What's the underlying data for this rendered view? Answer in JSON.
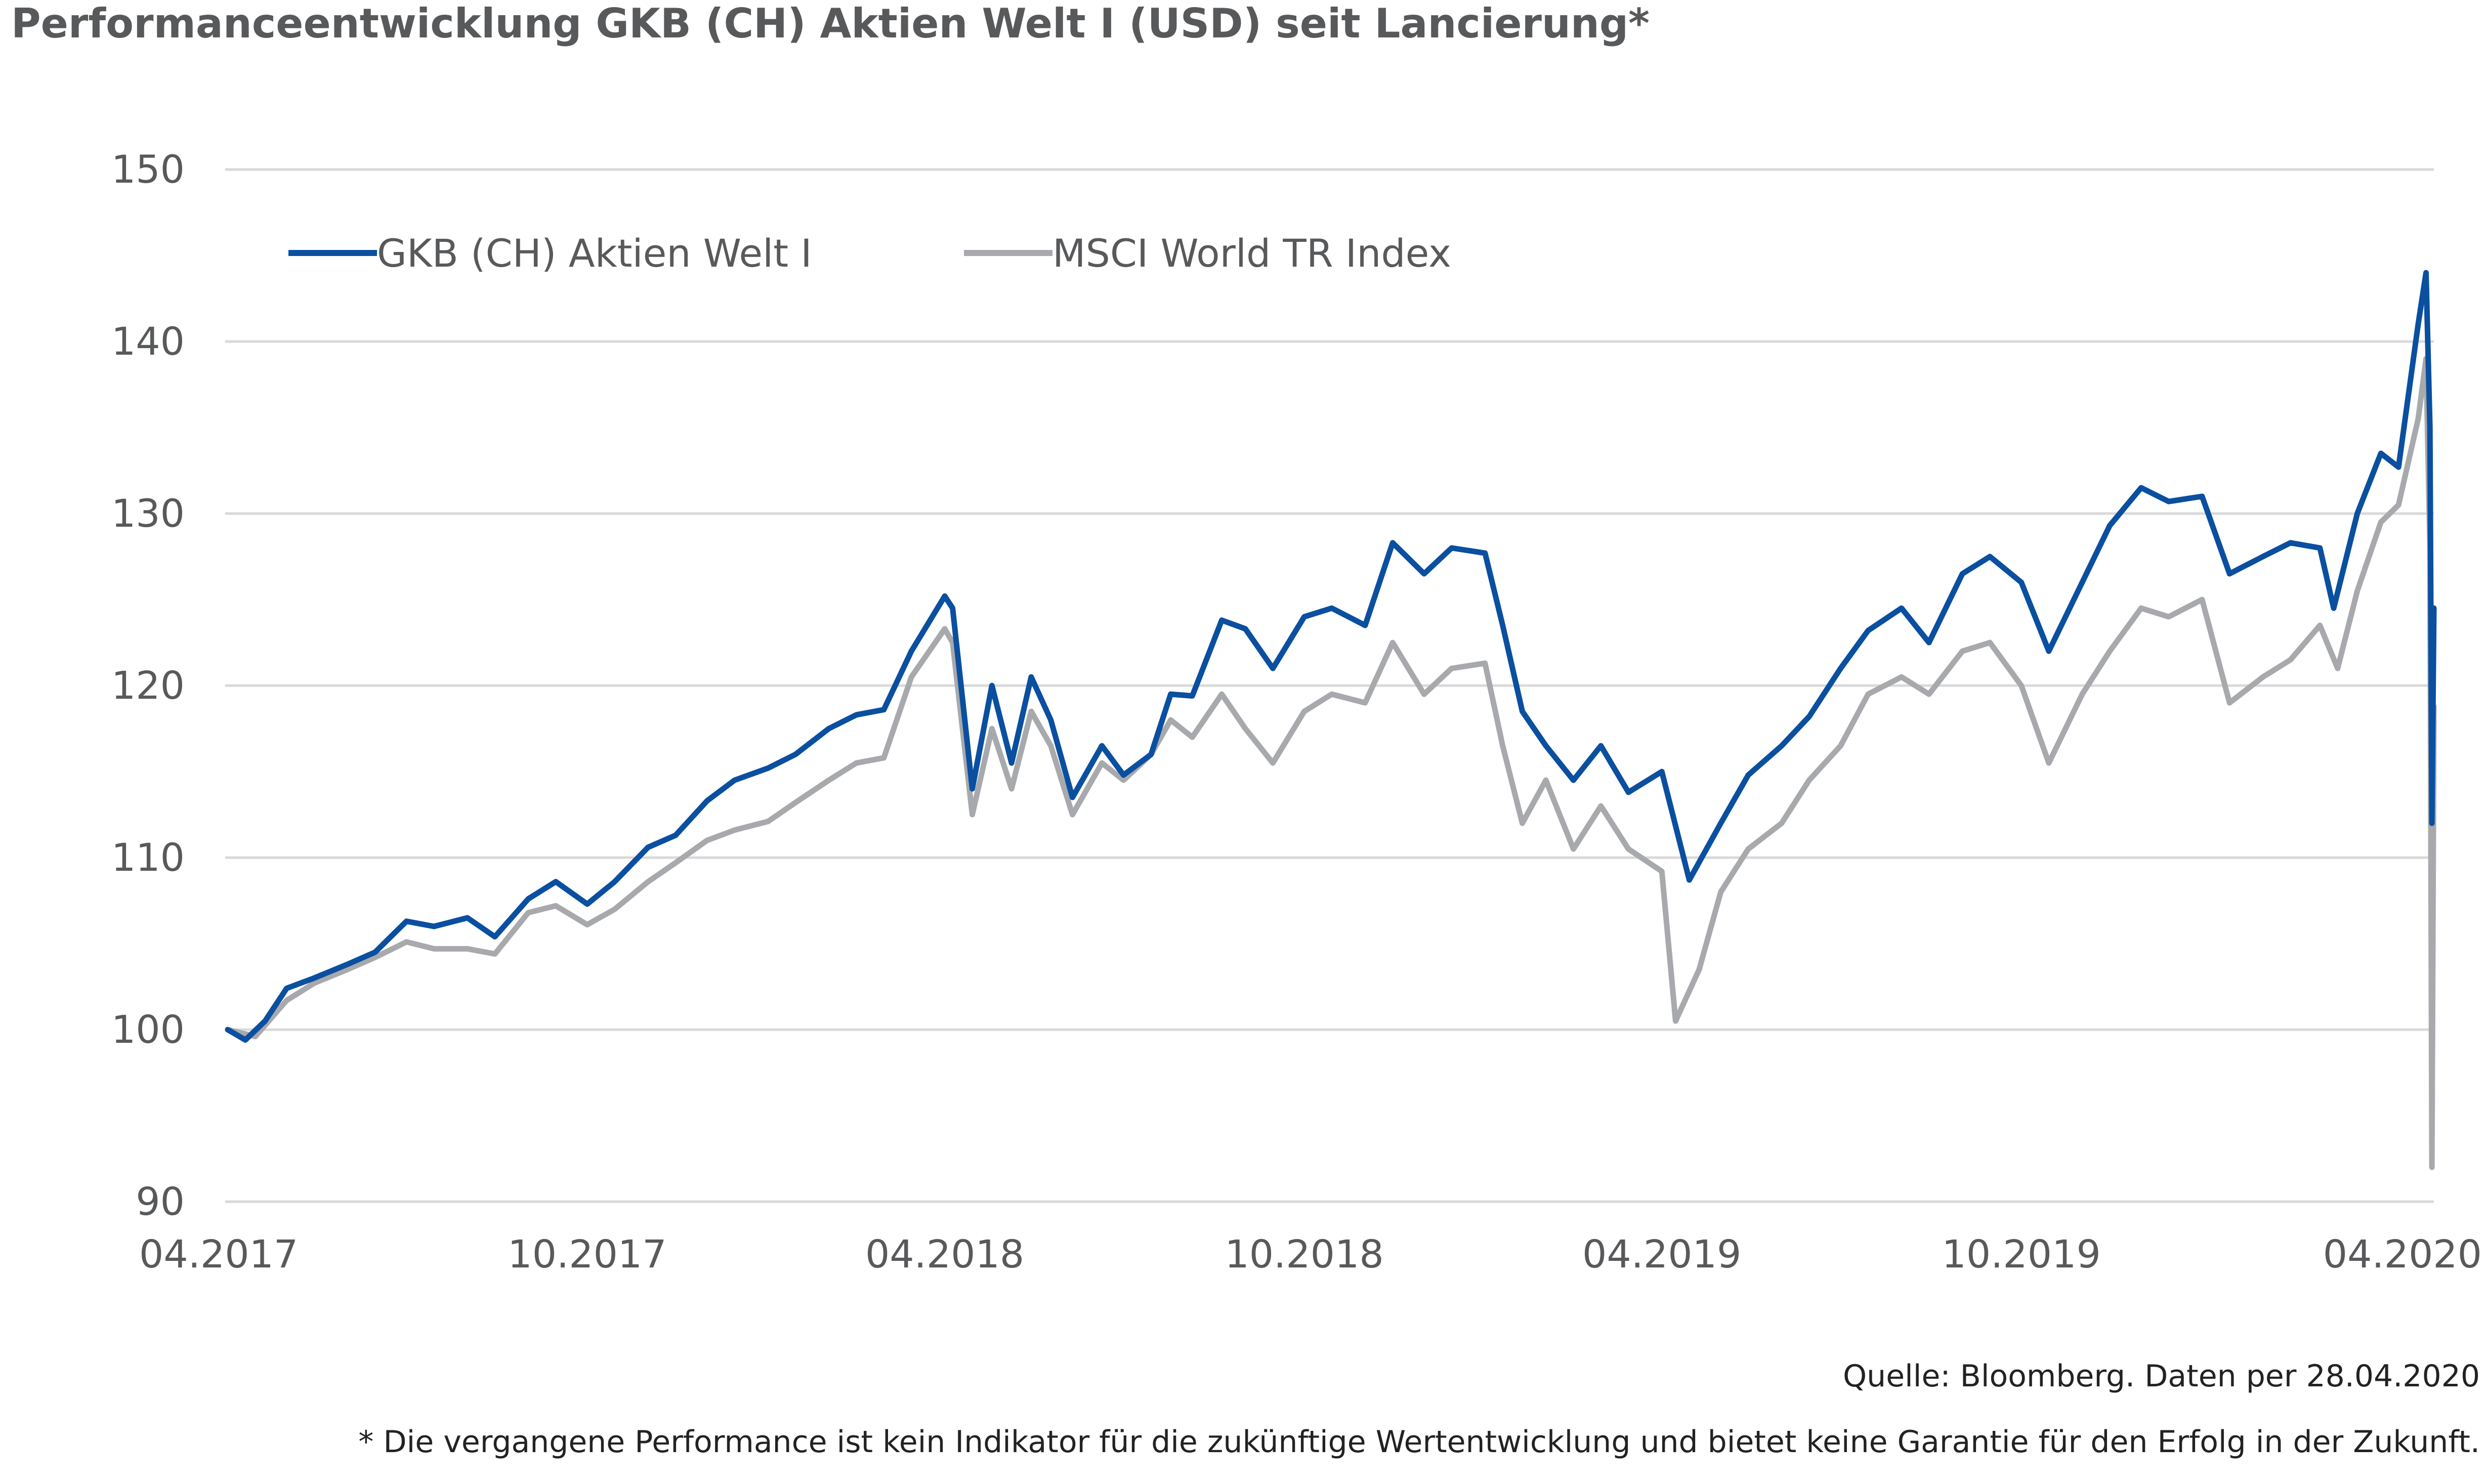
{
  "chart_data": {
    "type": "line",
    "title": "Performanceentwicklung GKB (CH) Aktien Welt I (USD) seit Lancierung*",
    "xlabel": "",
    "ylabel": "",
    "ylim": [
      90,
      150
    ],
    "yticks": [
      "90",
      "100",
      "110",
      "120",
      "130",
      "140",
      "150"
    ],
    "xlim": [
      "2017-04-01",
      "2020-04-28"
    ],
    "xticks": [
      {
        "date": "2017-04-01",
        "label": "04.2017"
      },
      {
        "date": "2017-10-01",
        "label": "10.2017"
      },
      {
        "date": "2018-04-01",
        "label": "04.2018"
      },
      {
        "date": "2018-10-01",
        "label": "10.2018"
      },
      {
        "date": "2019-04-01",
        "label": "04.2019"
      },
      {
        "date": "2019-10-01",
        "label": "10.2019"
      },
      {
        "date": "2020-04-01",
        "label": "04.2020"
      }
    ],
    "grid": true,
    "legend_position": "top-left",
    "series": [
      {
        "name": "GKB (CH) Aktien Welt I",
        "color": "#0a4fa0",
        "points": [
          [
            "2017-04-01",
            100
          ],
          [
            "2017-04-10",
            99.4
          ],
          [
            "2017-04-20",
            100.5
          ],
          [
            "2017-05-01",
            102.4
          ],
          [
            "2017-05-15",
            103
          ],
          [
            "2017-06-01",
            103.8
          ],
          [
            "2017-06-15",
            104.5
          ],
          [
            "2017-07-01",
            106.3
          ],
          [
            "2017-07-15",
            106
          ],
          [
            "2017-08-01",
            106.5
          ],
          [
            "2017-08-15",
            105.4
          ],
          [
            "2017-09-01",
            107.6
          ],
          [
            "2017-09-15",
            108.6
          ],
          [
            "2017-10-01",
            107.3
          ],
          [
            "2017-10-15",
            108.6
          ],
          [
            "2017-11-01",
            110.6
          ],
          [
            "2017-11-15",
            111.3
          ],
          [
            "2017-12-01",
            113.3
          ],
          [
            "2017-12-15",
            114.5
          ],
          [
            "2018-01-01",
            115.2
          ],
          [
            "2018-01-15",
            116
          ],
          [
            "2018-02-01",
            117.5
          ],
          [
            "2018-02-15",
            118.3
          ],
          [
            "2018-03-01",
            118.6
          ],
          [
            "2018-03-15",
            122
          ],
          [
            "2018-04-01",
            125.2
          ],
          [
            "2018-04-05",
            124.5
          ],
          [
            "2018-04-15",
            114
          ],
          [
            "2018-04-25",
            120
          ],
          [
            "2018-05-05",
            115.5
          ],
          [
            "2018-05-15",
            120.5
          ],
          [
            "2018-05-25",
            118
          ],
          [
            "2018-06-05",
            113.5
          ],
          [
            "2018-06-20",
            116.5
          ],
          [
            "2018-07-01",
            114.8
          ],
          [
            "2018-07-15",
            116
          ],
          [
            "2018-07-25",
            119.5
          ],
          [
            "2018-08-05",
            119.4
          ],
          [
            "2018-08-20",
            123.8
          ],
          [
            "2018-09-01",
            123.3
          ],
          [
            "2018-09-15",
            121
          ],
          [
            "2018-10-01",
            124
          ],
          [
            "2018-10-15",
            124.5
          ],
          [
            "2018-11-01",
            123.5
          ],
          [
            "2018-11-15",
            128.3
          ],
          [
            "2018-12-01",
            126.5
          ],
          [
            "2018-12-15",
            128
          ],
          [
            "2019-01-01",
            127.7
          ],
          [
            "2019-01-10",
            123.5
          ],
          [
            "2019-01-20",
            118.5
          ],
          [
            "2019-02-01",
            116.5
          ],
          [
            "2019-02-15",
            114.5
          ],
          [
            "2019-03-01",
            116.5
          ],
          [
            "2019-03-15",
            113.8
          ],
          [
            "2019-04-01",
            115
          ],
          [
            "2019-04-15",
            108.7
          ],
          [
            "2019-05-01",
            112
          ],
          [
            "2019-05-15",
            114.8
          ],
          [
            "2019-06-01",
            116.5
          ],
          [
            "2019-06-15",
            118.2
          ],
          [
            "2019-07-01",
            121
          ],
          [
            "2019-07-15",
            123.2
          ],
          [
            "2019-08-01",
            124.5
          ],
          [
            "2019-08-15",
            122.5
          ],
          [
            "2019-09-01",
            126.5
          ],
          [
            "2019-09-15",
            127.5
          ],
          [
            "2019-10-01",
            126
          ],
          [
            "2019-10-15",
            122
          ],
          [
            "2019-11-01",
            126
          ],
          [
            "2019-11-15",
            129.3
          ],
          [
            "2019-12-01",
            131.5
          ],
          [
            "2019-12-15",
            130.7
          ],
          [
            "2020-01-01",
            131
          ],
          [
            "2020-01-15",
            126.5
          ],
          [
            "2020-02-01",
            127.5
          ],
          [
            "2020-02-15",
            128.3
          ],
          [
            "2020-03-01",
            128
          ],
          [
            "2020-03-08",
            124.5
          ],
          [
            "2020-03-20",
            130
          ],
          [
            "2020-04-01",
            133.5
          ],
          [
            "2020-04-10",
            132.7
          ],
          [
            "2020-04-20",
            141
          ],
          [
            "2020-04-24",
            144
          ],
          [
            "2020-04-26",
            135
          ],
          [
            "2020-04-27",
            112
          ],
          [
            "2020-04-28",
            124.5
          ]
        ]
      },
      {
        "name": "MSCI World TR Index",
        "color": "#a7a9ac",
        "points": [
          [
            "2017-04-01",
            100
          ],
          [
            "2017-04-15",
            99.6
          ],
          [
            "2017-05-01",
            101.7
          ],
          [
            "2017-05-15",
            102.7
          ],
          [
            "2017-06-01",
            103.5
          ],
          [
            "2017-06-15",
            104.2
          ],
          [
            "2017-07-01",
            105.1
          ],
          [
            "2017-07-15",
            104.7
          ],
          [
            "2017-08-01",
            104.7
          ],
          [
            "2017-08-15",
            104.4
          ],
          [
            "2017-09-01",
            106.8
          ],
          [
            "2017-09-15",
            107.2
          ],
          [
            "2017-10-01",
            106.1
          ],
          [
            "2017-10-15",
            107
          ],
          [
            "2017-11-01",
            108.6
          ],
          [
            "2017-11-15",
            109.7
          ],
          [
            "2017-12-01",
            111
          ],
          [
            "2017-12-15",
            111.6
          ],
          [
            "2018-01-01",
            112.1
          ],
          [
            "2018-01-15",
            113.2
          ],
          [
            "2018-02-01",
            114.5
          ],
          [
            "2018-02-15",
            115.5
          ],
          [
            "2018-03-01",
            115.8
          ],
          [
            "2018-03-15",
            120.5
          ],
          [
            "2018-04-01",
            123.3
          ],
          [
            "2018-04-05",
            122.5
          ],
          [
            "2018-04-15",
            112.5
          ],
          [
            "2018-04-25",
            117.5
          ],
          [
            "2018-05-05",
            114
          ],
          [
            "2018-05-15",
            118.5
          ],
          [
            "2018-05-25",
            116.5
          ],
          [
            "2018-06-05",
            112.5
          ],
          [
            "2018-06-20",
            115.5
          ],
          [
            "2018-07-01",
            114.5
          ],
          [
            "2018-07-15",
            116
          ],
          [
            "2018-07-25",
            118
          ],
          [
            "2018-08-05",
            117
          ],
          [
            "2018-08-20",
            119.5
          ],
          [
            "2018-09-01",
            117.5
          ],
          [
            "2018-09-15",
            115.5
          ],
          [
            "2018-10-01",
            118.5
          ],
          [
            "2018-10-15",
            119.5
          ],
          [
            "2018-11-01",
            119
          ],
          [
            "2018-11-15",
            122.5
          ],
          [
            "2018-12-01",
            119.5
          ],
          [
            "2018-12-15",
            121
          ],
          [
            "2019-01-01",
            121.3
          ],
          [
            "2019-01-10",
            116.5
          ],
          [
            "2019-01-20",
            112
          ],
          [
            "2019-02-01",
            114.5
          ],
          [
            "2019-02-15",
            110.5
          ],
          [
            "2019-03-01",
            113
          ],
          [
            "2019-03-15",
            110.5
          ],
          [
            "2019-04-01",
            109.2
          ],
          [
            "2019-04-08",
            100.5
          ],
          [
            "2019-04-20",
            103.5
          ],
          [
            "2019-05-01",
            108
          ],
          [
            "2019-05-15",
            110.5
          ],
          [
            "2019-06-01",
            112
          ],
          [
            "2019-06-15",
            114.5
          ],
          [
            "2019-07-01",
            116.5
          ],
          [
            "2019-07-15",
            119.5
          ],
          [
            "2019-08-01",
            120.5
          ],
          [
            "2019-08-15",
            119.5
          ],
          [
            "2019-09-01",
            122
          ],
          [
            "2019-09-15",
            122.5
          ],
          [
            "2019-10-01",
            120
          ],
          [
            "2019-10-15",
            115.5
          ],
          [
            "2019-11-01",
            119.5
          ],
          [
            "2019-11-15",
            122
          ],
          [
            "2019-12-01",
            124.5
          ],
          [
            "2019-12-15",
            124
          ],
          [
            "2020-01-01",
            125
          ],
          [
            "2020-01-15",
            119
          ],
          [
            "2020-02-01",
            120.5
          ],
          [
            "2020-02-15",
            121.5
          ],
          [
            "2020-03-01",
            123.5
          ],
          [
            "2020-03-10",
            121
          ],
          [
            "2020-03-20",
            125.5
          ],
          [
            "2020-04-01",
            129.5
          ],
          [
            "2020-04-10",
            130.5
          ],
          [
            "2020-04-20",
            135.5
          ],
          [
            "2020-04-24",
            139
          ],
          [
            "2020-04-26",
            128
          ],
          [
            "2020-04-27",
            92
          ],
          [
            "2020-04-28",
            118.8
          ]
        ]
      }
    ]
  },
  "footer": {
    "source": "Quelle: Bloomberg. Daten per 28.04.2020",
    "disclaimer": "* Die vergangene Performance ist kein Indikator für die zukünftige Wertentwicklung und bietet keine Garantie für den Erfolg in der Zukunft."
  }
}
